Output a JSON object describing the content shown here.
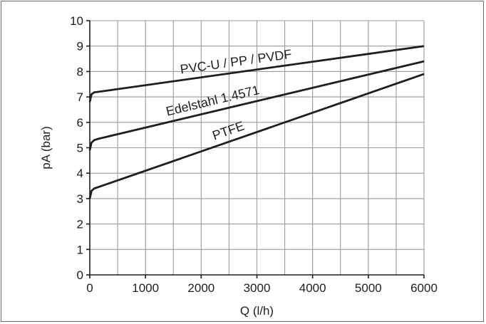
{
  "chart_data": {
    "type": "line",
    "xlabel": "Q (l/h)",
    "ylabel": "pA (bar)",
    "xlim": [
      0,
      6000
    ],
    "ylim": [
      0,
      10
    ],
    "x_ticks": [
      0,
      1000,
      2000,
      3000,
      4000,
      5000,
      6000
    ],
    "y_ticks": [
      0,
      1,
      2,
      3,
      4,
      5,
      6,
      7,
      8,
      9,
      10
    ],
    "x_grid_step": 500,
    "y_grid_step": 1,
    "grid": true,
    "legend": "none",
    "series": [
      {
        "name": "PVC-U / PP / PVDF",
        "x": [
          0,
          30,
          80,
          150,
          6000
        ],
        "y": [
          6.8,
          7.1,
          7.18,
          7.2,
          9.0
        ]
      },
      {
        "name": "Edelstahl 1.4571",
        "x": [
          0,
          30,
          80,
          150,
          6000
        ],
        "y": [
          4.9,
          5.2,
          5.3,
          5.35,
          8.4
        ]
      },
      {
        "name": "PTFE",
        "x": [
          0,
          30,
          80,
          150,
          6000
        ],
        "y": [
          3.0,
          3.3,
          3.4,
          3.45,
          7.9
        ]
      }
    ]
  }
}
